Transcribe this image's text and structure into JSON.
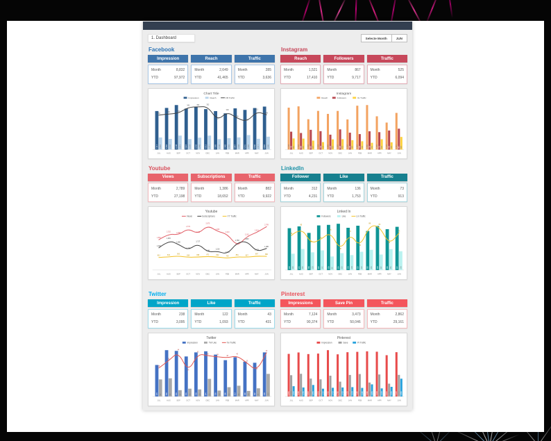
{
  "window": {
    "sheet_label": "1. Dashboard",
    "select_month_label": "Selecte Month",
    "selected_month": "JUN"
  },
  "labels": {
    "month": "Month",
    "ytd": "YTD"
  },
  "months": [
    "JUL",
    "AUG",
    "SEP",
    "OCT",
    "NOV",
    "DEC",
    "JAN",
    "FEB",
    "MAR",
    "APR",
    "MAY",
    "JUN"
  ],
  "colors": {
    "facebook_accent": "#2e75b6",
    "instagram_accent": "#c7485b",
    "youtube_accent": "#d9505c",
    "linkedin_accent": "#1f93a8",
    "twitter_accent": "#00aeef",
    "pinterest_accent": "#e8515a",
    "titlebar": "#333f50",
    "sheet_background": "#ededed"
  },
  "sections": [
    {
      "name": "facebook",
      "title": "Facebook",
      "kpis": [
        {
          "label": "Impression",
          "month": "8,832",
          "ytd": "97,972"
        },
        {
          "label": "Reach",
          "month": "2,649",
          "ytd": "41,465"
        },
        {
          "label": "Traffic",
          "month": "285",
          "ytd": "3,636"
        }
      ]
    },
    {
      "name": "instagram",
      "title": "Instagram",
      "kpis": [
        {
          "label": "Reach",
          "month": "1,521",
          "ytd": "17,410"
        },
        {
          "label": "Followers",
          "month": "867",
          "ytd": "9,717"
        },
        {
          "label": "Traffic",
          "month": "525",
          "ytd": "6,094"
        }
      ]
    },
    {
      "name": "youtube",
      "title": "Youtube",
      "kpis": [
        {
          "label": "Views",
          "month": "2,789",
          "ytd": "27,198"
        },
        {
          "label": "Subscriptions",
          "month": "1,386",
          "ytd": "18,652"
        },
        {
          "label": "Traffic",
          "month": "882",
          "ytd": "9,922"
        }
      ]
    },
    {
      "name": "linkedin",
      "title": "LinkedIn",
      "kpis": [
        {
          "label": "Follower",
          "month": "312",
          "ytd": "4,231"
        },
        {
          "label": "Like",
          "month": "136",
          "ytd": "1,753"
        },
        {
          "label": "Traffic",
          "month": "73",
          "ytd": "913"
        }
      ]
    },
    {
      "name": "twitter",
      "title": "Twitter",
      "kpis": [
        {
          "label": "Impression",
          "month": "238",
          "ytd": "3,095"
        },
        {
          "label": "Like",
          "month": "122",
          "ytd": "1,093"
        },
        {
          "label": "Traffic",
          "month": "43",
          "ytd": "431"
        }
      ]
    },
    {
      "name": "pinterest",
      "title": "Pinterest",
      "kpis": [
        {
          "label": "Impressions",
          "month": "7,124",
          "ytd": "90,374"
        },
        {
          "label": "Save Pin",
          "month": "3,473",
          "ytd": "50,046"
        },
        {
          "label": "Traffic",
          "month": "2,862",
          "ytd": "29,161"
        }
      ]
    }
  ],
  "chart_data": [
    {
      "name": "facebook-chart",
      "type": "combo",
      "title": "Chart Title",
      "legend_position": "top",
      "categories": [
        "JUL",
        "AUG",
        "SEP",
        "OCT",
        "NOV",
        "DEC",
        "JAN",
        "FEB",
        "MAR",
        "APR",
        "MAY",
        "JUN"
      ],
      "series": [
        {
          "name": "Impression",
          "type": "bar",
          "color": "#2f5f8f",
          "values": [
            7917,
            8560,
            9148,
            8423,
            8790,
            8312,
            7905,
            7442,
            8467,
            8151,
            8536,
            8832
          ]
        },
        {
          "name": "Reach",
          "type": "bar",
          "color": "#b8d3ea",
          "values": [
            2490,
            2190,
            2873,
            2150,
            2448,
            2871,
            2136,
            2355,
            2508,
            2980,
            2217,
            2649
          ]
        },
        {
          "name": "FB Traffic",
          "type": "line",
          "color": "#404040",
          "labelColor": "#595959",
          "values": [
            282,
            291,
            297,
            346,
            350,
            352,
            238,
            309,
            256,
            228,
            312,
            285
          ]
        }
      ]
    },
    {
      "name": "instagram-chart",
      "type": "bar",
      "title": "Instagram",
      "legend_position": "top",
      "categories": [
        "JUL",
        "AUG",
        "SEP",
        "OCT",
        "NOV",
        "DEC",
        "JAN",
        "FEB",
        "MAR",
        "APR",
        "MAY",
        "JUN"
      ],
      "series": [
        {
          "name": "Reach",
          "type": "bar",
          "color": "#f3a361",
          "values": [
            1738,
            1792,
            1258,
            1604,
            1480,
            1602,
            1250,
            1820,
            1846,
            1380,
            1120,
            1521
          ]
        },
        {
          "name": "Followers",
          "type": "bar",
          "color": "#b8474f",
          "values": [
            742,
            688,
            820,
            764,
            618,
            838,
            700,
            642,
            758,
            722,
            790,
            867
          ]
        },
        {
          "name": "IG Traffic",
          "type": "bar",
          "color": "#fdd23e",
          "values": [
            462,
            455,
            372,
            310,
            425,
            432,
            390,
            345,
            282,
            430,
            302,
            525
          ]
        }
      ]
    },
    {
      "name": "youtube-chart",
      "type": "line",
      "title": "Youtube",
      "legend_position": "top",
      "categories": [
        "JUL",
        "AUG",
        "SEP",
        "OCT",
        "NOV",
        "DEC",
        "JAN",
        "FEB",
        "MAR",
        "APR",
        "MAY",
        "JUN"
      ],
      "series": [
        {
          "name": "Views",
          "type": "line",
          "color": "#e15b64",
          "labelColor": "#d9545e",
          "values": [
            1952,
            2332,
            2258,
            2672,
            2312,
            2875,
            2482,
            2310,
            1528,
            2162,
            2415,
            2789
          ]
        },
        {
          "name": "Subscriptions",
          "type": "line",
          "color": "#3f3f3f",
          "labelColor": "#404040",
          "values": [
            1430,
            1915,
            1660,
            1276,
            1717,
            1141,
            1216,
            1014,
            1768,
            1857,
            1178,
            1386
          ]
        },
        {
          "name": "YT Traffic",
          "type": "line",
          "color": "#f2c126",
          "labelColor": "#bf9000",
          "values": [
            812,
            843,
            905,
            818,
            838,
            872,
            842,
            763,
            851,
            827,
            897,
            882
          ]
        }
      ]
    },
    {
      "name": "linkedin-chart",
      "type": "combo",
      "title": "Linked In",
      "legend_position": "top",
      "categories": [
        "JUL",
        "AUG",
        "SEP",
        "OCT",
        "NOV",
        "DEC",
        "JAN",
        "FEB",
        "MAR",
        "APR",
        "MAY",
        "JUN"
      ],
      "series": [
        {
          "name": "Followers",
          "type": "bar",
          "color": "#0f9595",
          "values": [
            302,
            315,
            268,
            322,
            326,
            334,
            305,
            320,
            282,
            318,
            295,
            312
          ]
        },
        {
          "name": "Like",
          "type": "bar",
          "color": "#b9f2f0",
          "values": [
            118,
            152,
            128,
            142,
            98,
            122,
            108,
            132,
            146,
            112,
            151,
            136
          ]
        },
        {
          "name": "Lin Traffic",
          "type": "line",
          "color": "#f2c126",
          "labelColor": "#bf9000",
          "values": [
            68,
            85,
            52,
            60,
            75,
            38,
            72,
            45,
            88,
            86,
            50,
            73
          ]
        }
      ]
    },
    {
      "name": "twitter-chart",
      "type": "combo",
      "title": "Twitter",
      "legend_position": "top",
      "categories": [
        "JUL",
        "AUG",
        "SEP",
        "OCT",
        "NOV",
        "DEC",
        "JAN",
        "FEB",
        "MAR",
        "APR",
        "MAY",
        "JUN"
      ],
      "series": [
        {
          "name": "Impression",
          "type": "bar",
          "color": "#4472c4",
          "values": [
            170,
            250,
            246,
            216,
            238,
            244,
            226,
            196,
            212,
            188,
            182,
            238
          ]
        },
        {
          "name": "TW Like",
          "type": "bar",
          "color": "#a9a9a9",
          "values": [
            92,
            98,
            34,
            42,
            38,
            95,
            32,
            50,
            58,
            30,
            44,
            122
          ]
        },
        {
          "name": "Tw Traffic",
          "type": "line",
          "color": "#e2544f",
          "labelColor": "#c0504d",
          "values": [
            28,
            35,
            44,
            24,
            42,
            40,
            39,
            38,
            40,
            33,
            25,
            43
          ]
        }
      ]
    },
    {
      "name": "pinterest-chart",
      "type": "bar",
      "title": "Pinterest",
      "legend_position": "top",
      "categories": [
        "JUL",
        "AUG",
        "SEP",
        "OCT",
        "NOV",
        "DEC",
        "JAN",
        "FEB",
        "MAR",
        "APR",
        "MAY",
        "JUN"
      ],
      "series": [
        {
          "name": "Impression",
          "type": "bar",
          "color": "#e84b4b",
          "values": [
            6850,
            7080,
            6820,
            6900,
            7450,
            6780,
            7120,
            7180,
            7260,
            7200,
            6640,
            7124
          ]
        },
        {
          "name": "Save",
          "type": "bar",
          "color": "#a0a0a0",
          "values": [
            3420,
            3650,
            2880,
            2760,
            3340,
            2380,
            3460,
            3610,
            2240,
            3540,
            2060,
            3473
          ]
        },
        {
          "name": "PI Traffic",
          "type": "bar",
          "color": "#27a3dd",
          "values": [
            1650,
            1450,
            1850,
            1250,
            1400,
            1450,
            1500,
            1380,
            1950,
            1300,
            1550,
            2862
          ]
        }
      ]
    }
  ]
}
